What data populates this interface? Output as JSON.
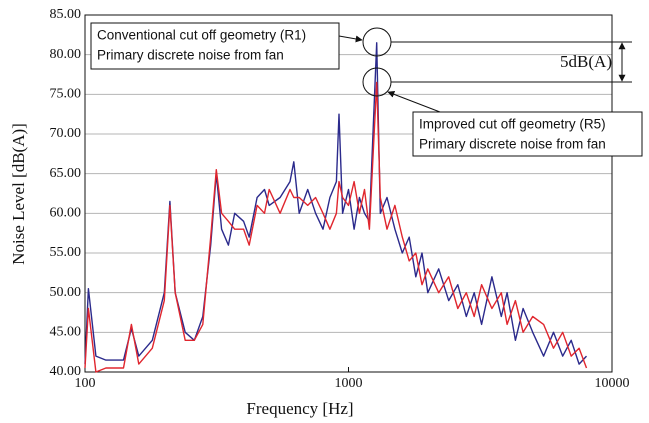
{
  "chart_data": {
    "type": "line",
    "x_label": "Frequency [Hz]",
    "y_label": "Noise Level [dB(A)]",
    "x_log": true,
    "grid": true,
    "xlim": [
      100,
      10000
    ],
    "xticks": [
      100,
      1000,
      10000
    ],
    "ylim": [
      40,
      85
    ],
    "yticks": [
      {
        "value": 40,
        "label": "40.00"
      },
      {
        "value": 45,
        "label": "45.00"
      },
      {
        "value": 50,
        "label": "50.00"
      },
      {
        "value": 55,
        "label": "55.00"
      },
      {
        "value": 60,
        "label": "60.00"
      },
      {
        "value": 65,
        "label": "65.00"
      },
      {
        "value": 70,
        "label": "70.00"
      },
      {
        "value": 75,
        "label": "75.00"
      },
      {
        "value": 80,
        "label": "80.00"
      },
      {
        "value": 85,
        "label": "85.00"
      }
    ],
    "x": [
      100,
      103,
      110,
      120,
      140,
      150,
      160,
      180,
      200,
      210,
      220,
      240,
      260,
      280,
      300,
      315,
      330,
      350,
      370,
      400,
      420,
      450,
      480,
      500,
      550,
      600,
      620,
      650,
      700,
      750,
      800,
      850,
      900,
      920,
      950,
      1000,
      1050,
      1100,
      1150,
      1200,
      1280,
      1320,
      1400,
      1500,
      1600,
      1700,
      1800,
      1900,
      2000,
      2200,
      2400,
      2600,
      2800,
      3000,
      3200,
      3500,
      3800,
      4000,
      4300,
      4600,
      5000,
      5500,
      6000,
      6500,
      7000,
      7500,
      8000
    ],
    "series": [
      {
        "color": "#2b2a8c",
        "values": [
          41,
          50.5,
          42,
          41.5,
          41.5,
          45.5,
          42,
          44,
          50,
          61.5,
          50,
          45,
          44,
          47,
          56,
          65,
          58,
          56,
          60,
          59,
          57,
          62,
          63,
          61,
          62,
          64,
          66.5,
          60,
          63,
          60,
          58,
          62,
          64,
          72.5,
          60,
          63,
          58,
          62,
          60,
          59,
          81.5,
          60,
          62,
          58,
          55,
          57,
          52,
          55,
          50,
          53,
          49,
          51,
          47,
          50,
          46,
          52,
          47,
          50,
          44,
          48,
          45,
          42,
          45,
          42,
          44,
          41,
          42
        ]
      },
      {
        "color": "#e0262e",
        "values": [
          40.5,
          48,
          40,
          40.5,
          40.5,
          46,
          41,
          43,
          49,
          61,
          50,
          44,
          44,
          46,
          57,
          65.5,
          60,
          59,
          58,
          58,
          56,
          61,
          60,
          63,
          60,
          63,
          62,
          62,
          61,
          62,
          60,
          58,
          60,
          64,
          62,
          61,
          64,
          60,
          63,
          58,
          76.5,
          62,
          58,
          61,
          57,
          54,
          55,
          51,
          53,
          50,
          52,
          48,
          50,
          47,
          51,
          48,
          50,
          46,
          49,
          45,
          47,
          46,
          43,
          45,
          42,
          43,
          40.5
        ]
      }
    ],
    "annotations": [
      "Conventional cut off geometry (R1)",
      "Primary discrete noise from fan",
      "Improved cut off geometry (R5)",
      "Primary discrete noise from fan",
      "5dB(A)"
    ]
  }
}
